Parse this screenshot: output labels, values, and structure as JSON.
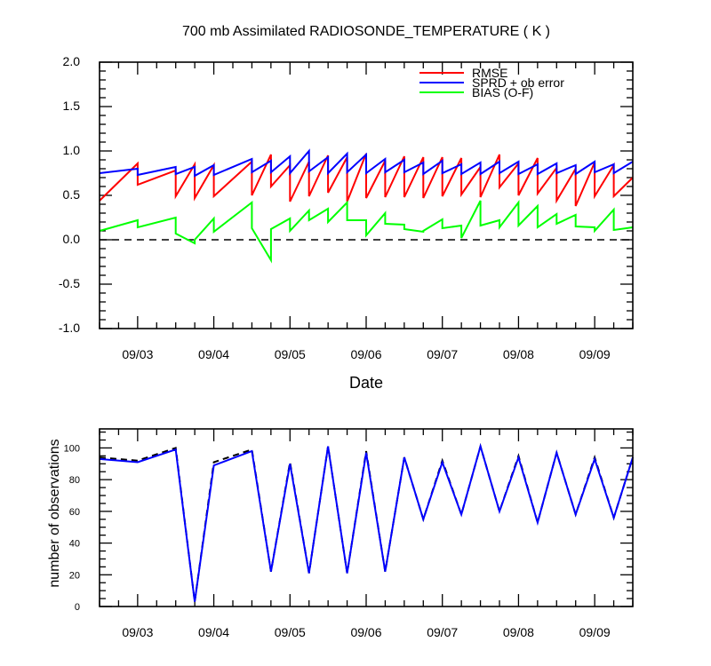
{
  "chart_data": [
    {
      "type": "line",
      "title": "700 mb Assimilated RADIOSONDE_TEMPERATURE ( K )",
      "xlabel": "Date",
      "ylabel": "",
      "ylim": [
        -1.0,
        2.0
      ],
      "y_ticks": [
        "-1.0",
        "-0.5",
        "0.0",
        "0.5",
        "1.0",
        "1.5",
        "2.0"
      ],
      "x_tick_labels": [
        "09/03",
        "09/04",
        "09/05",
        "09/06",
        "09/07",
        "09/08",
        "09/09"
      ],
      "x_range_days": [
        2.5,
        9.5
      ],
      "zero_line": "dashed",
      "legend_position": "top-right",
      "series": [
        {
          "name": "RMSE",
          "color": "#ff0000",
          "x": [
            2.5,
            3.0,
            3.0,
            3.5,
            3.5,
            3.75,
            3.75,
            4.0,
            4.0,
            4.5,
            4.5,
            4.75,
            4.75,
            5.0,
            5.0,
            5.25,
            5.25,
            5.5,
            5.5,
            5.75,
            5.75,
            6.0,
            6.0,
            6.25,
            6.25,
            6.5,
            6.5,
            6.75,
            6.75,
            7.0,
            7.0,
            7.25,
            7.25,
            7.5,
            7.5,
            7.75,
            7.75,
            8.0,
            8.0,
            8.25,
            8.25,
            8.5,
            8.5,
            8.75,
            8.75,
            9.0,
            9.0,
            9.25,
            9.25,
            9.5
          ],
          "values": [
            0.44,
            0.86,
            0.62,
            0.78,
            0.49,
            0.85,
            0.47,
            0.84,
            0.49,
            0.88,
            0.5,
            0.96,
            0.6,
            0.84,
            0.43,
            0.88,
            0.49,
            0.95,
            0.53,
            0.93,
            0.43,
            0.97,
            0.47,
            0.89,
            0.48,
            0.94,
            0.48,
            0.93,
            0.47,
            0.93,
            0.49,
            0.92,
            0.51,
            0.82,
            0.48,
            0.96,
            0.59,
            0.86,
            0.5,
            0.92,
            0.52,
            0.81,
            0.44,
            0.8,
            0.38,
            0.87,
            0.49,
            0.84,
            0.49,
            0.7
          ]
        },
        {
          "name": "SPRD + ob error",
          "color": "#0000ff",
          "x": [
            2.5,
            3.0,
            3.0,
            3.5,
            3.5,
            3.75,
            3.75,
            4.0,
            4.0,
            4.5,
            4.5,
            4.75,
            4.75,
            5.0,
            5.0,
            5.25,
            5.25,
            5.5,
            5.5,
            5.75,
            5.75,
            6.0,
            6.0,
            6.25,
            6.25,
            6.5,
            6.5,
            6.75,
            6.75,
            7.0,
            7.0,
            7.25,
            7.25,
            7.5,
            7.5,
            7.75,
            7.75,
            8.0,
            8.0,
            8.25,
            8.25,
            8.5,
            8.5,
            8.75,
            8.75,
            9.0,
            9.0,
            9.25,
            9.25,
            9.5
          ],
          "values": [
            0.75,
            0.8,
            0.73,
            0.82,
            0.74,
            0.82,
            0.72,
            0.84,
            0.73,
            0.91,
            0.76,
            0.89,
            0.76,
            0.94,
            0.75,
            1.0,
            0.77,
            0.93,
            0.75,
            0.97,
            0.76,
            0.96,
            0.75,
            0.91,
            0.76,
            0.9,
            0.76,
            0.87,
            0.74,
            0.89,
            0.75,
            0.85,
            0.74,
            0.87,
            0.74,
            0.88,
            0.75,
            0.88,
            0.74,
            0.85,
            0.74,
            0.86,
            0.75,
            0.84,
            0.74,
            0.88,
            0.76,
            0.85,
            0.75,
            0.88
          ]
        },
        {
          "name": "BIAS (O-F)",
          "color": "#00ff00",
          "x": [
            2.5,
            3.0,
            3.0,
            3.5,
            3.5,
            3.75,
            3.75,
            4.0,
            4.0,
            4.5,
            4.5,
            4.75,
            4.75,
            5.0,
            5.0,
            5.25,
            5.25,
            5.5,
            5.5,
            5.75,
            5.75,
            6.0,
            6.0,
            6.25,
            6.25,
            6.5,
            6.5,
            6.75,
            6.75,
            7.0,
            7.0,
            7.25,
            7.25,
            7.5,
            7.5,
            7.75,
            7.75,
            8.0,
            8.0,
            8.25,
            8.25,
            8.5,
            8.5,
            8.75,
            8.75,
            9.0,
            9.0,
            9.25,
            9.25,
            9.5
          ],
          "values": [
            0.1,
            0.22,
            0.14,
            0.25,
            0.07,
            -0.04,
            0.0,
            0.24,
            0.09,
            0.42,
            0.13,
            -0.23,
            0.12,
            0.24,
            0.1,
            0.33,
            0.22,
            0.35,
            0.2,
            0.42,
            0.22,
            0.22,
            0.05,
            0.3,
            0.18,
            0.17,
            0.12,
            0.09,
            0.1,
            0.23,
            0.13,
            0.16,
            0.02,
            0.44,
            0.16,
            0.22,
            0.14,
            0.42,
            0.16,
            0.38,
            0.14,
            0.29,
            0.18,
            0.28,
            0.15,
            0.14,
            0.1,
            0.34,
            0.11,
            0.14
          ]
        }
      ]
    },
    {
      "type": "line",
      "title": "",
      "xlabel": "",
      "ylabel": "number of observations",
      "ylim": [
        0,
        112
      ],
      "y_ticks": [
        "0",
        "20",
        "40",
        "60",
        "80",
        "100"
      ],
      "x_tick_labels": [
        "09/03",
        "09/04",
        "09/05",
        "09/06",
        "09/07",
        "09/08",
        "09/09"
      ],
      "x_range_days": [
        2.5,
        9.5
      ],
      "series": [
        {
          "name": "",
          "color": "#000000",
          "dash": "dashed",
          "x": [
            2.5,
            3.0,
            3.5,
            3.75,
            4.0,
            4.5,
            4.75,
            5.0,
            5.25,
            5.5,
            5.75,
            6.0,
            6.25,
            6.5,
            6.75,
            7.0,
            7.25,
            7.5,
            7.75,
            8.0,
            8.25,
            8.5,
            8.75,
            9.0,
            9.25,
            9.5
          ],
          "values": [
            94,
            92,
            100,
            3,
            91,
            99,
            22,
            91,
            21,
            101,
            21,
            98,
            22,
            94,
            55,
            92,
            58,
            101,
            60,
            95,
            53,
            97,
            58,
            94,
            56,
            94
          ]
        },
        {
          "name": "",
          "color": "#0000ff",
          "dash": "solid",
          "x": [
            2.5,
            3.0,
            3.5,
            3.75,
            4.0,
            4.5,
            4.75,
            5.0,
            5.25,
            5.5,
            5.75,
            6.0,
            6.25,
            6.5,
            6.75,
            7.0,
            7.25,
            7.5,
            7.75,
            8.0,
            8.25,
            8.5,
            8.75,
            9.0,
            9.25,
            9.5
          ],
          "values": [
            93,
            91,
            99,
            3,
            89,
            98,
            22,
            90,
            21,
            101,
            21,
            97,
            22,
            94,
            55,
            91,
            58,
            101,
            60,
            94,
            53,
            97,
            58,
            93,
            56,
            94
          ]
        }
      ]
    }
  ]
}
